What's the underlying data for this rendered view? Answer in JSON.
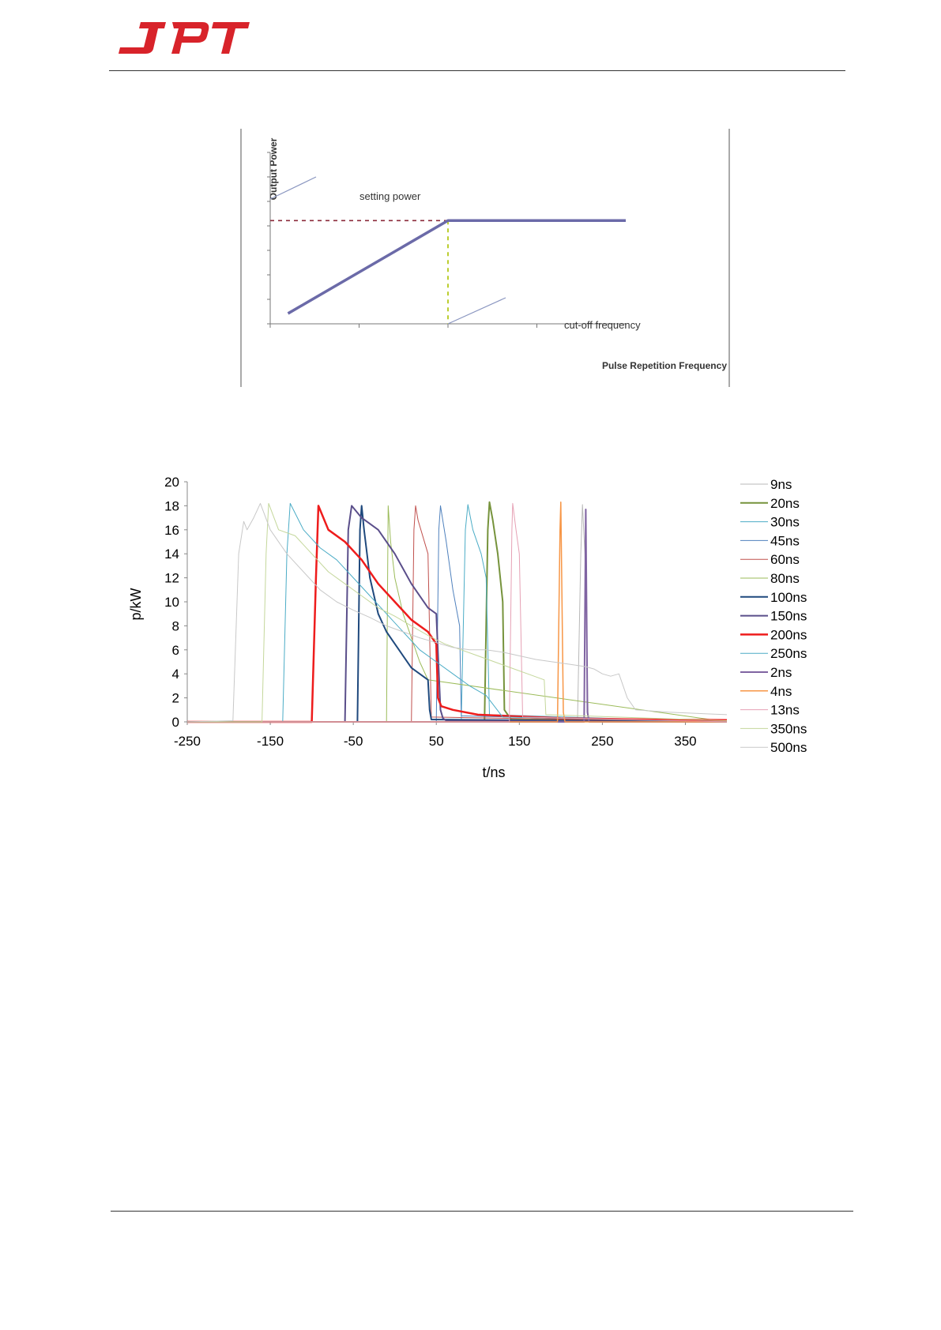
{
  "header": {
    "logo_text": "JPT",
    "brand_color": "#d8232a"
  },
  "chart_data": [
    {
      "type": "line",
      "ylabel": "Output Power",
      "xlabel": "Pulse Repetition Frequency",
      "annotations": [
        "setting power",
        "cut-off frequency"
      ],
      "series": [
        {
          "x": [
            0.1,
            1,
            2
          ],
          "values": [
            0.05,
            0.5,
            0.5
          ],
          "color": "#6b6aa8"
        }
      ],
      "setting_power_level": 0.5,
      "cutoff_frequency": 1,
      "xlim": [
        0,
        2
      ],
      "ylim": [
        0,
        0.83
      ],
      "guide_colors": {
        "setting_power": "#8b2a3a",
        "cut_off": "#b5c91a"
      }
    },
    {
      "type": "line",
      "xlabel": "t/ns",
      "ylabel": "p/kW",
      "xlim": [
        -250,
        400
      ],
      "ylim": [
        0,
        20
      ],
      "xticks": [
        -250,
        -150,
        -50,
        50,
        150,
        250,
        350
      ],
      "yticks": [
        0,
        2,
        4,
        6,
        8,
        10,
        12,
        14,
        16,
        18,
        20
      ],
      "legend_position": "right",
      "series": [
        {
          "name": "9ns",
          "color": "#b8b8b8",
          "width": 1,
          "x": [
            -250,
            220,
            224,
            226,
            229,
            233,
            400
          ],
          "values": [
            0,
            0,
            14,
            18.1,
            14,
            0.3,
            0
          ]
        },
        {
          "name": "20ns",
          "color": "#76933c",
          "width": 2,
          "x": [
            -250,
            108,
            112,
            114,
            118,
            124,
            130,
            132,
            140,
            400
          ],
          "values": [
            0,
            0,
            16,
            18.3,
            16.8,
            14,
            10,
            1,
            0.2,
            0
          ]
        },
        {
          "name": "30ns",
          "color": "#4bacc6",
          "width": 1,
          "x": [
            -250,
            80,
            85,
            88,
            94,
            104,
            110,
            114,
            400
          ],
          "values": [
            0,
            0,
            16,
            18.1,
            16,
            14,
            12,
            0.6,
            0
          ]
        },
        {
          "name": "45ns",
          "color": "#4f81bd",
          "width": 1,
          "x": [
            -250,
            50,
            53,
            55,
            62,
            70,
            78,
            80,
            400
          ],
          "values": [
            0,
            0,
            16,
            18,
            15,
            11,
            8,
            0.5,
            0
          ]
        },
        {
          "name": "60ns",
          "color": "#c0504d",
          "width": 1,
          "x": [
            -250,
            20,
            23,
            25,
            28,
            40,
            44,
            400
          ],
          "values": [
            0,
            0,
            16,
            18,
            16.8,
            14,
            0.4,
            0
          ]
        },
        {
          "name": "80ns",
          "color": "#9bbb59",
          "width": 1,
          "x": [
            -250,
            -10,
            -8,
            -5,
            0,
            10,
            20,
            30,
            40,
            400
          ],
          "values": [
            0,
            0,
            18,
            15,
            12,
            9,
            7,
            5,
            3.5,
            0
          ]
        },
        {
          "name": "100ns",
          "color": "#1f497d",
          "width": 2,
          "x": [
            -250,
            -45,
            -42,
            -40,
            -37,
            -30,
            -20,
            -10,
            0,
            10,
            20,
            30,
            40,
            42,
            44,
            400
          ],
          "values": [
            0,
            0,
            16,
            18,
            16,
            12,
            9,
            7.5,
            6.5,
            5.5,
            4.5,
            4,
            3.5,
            1,
            0.2,
            0
          ]
        },
        {
          "name": "150ns",
          "color": "#5a4e8a",
          "width": 2,
          "x": [
            -250,
            -60,
            -56,
            -52,
            -40,
            -20,
            0,
            20,
            40,
            50,
            55,
            58,
            62,
            400
          ],
          "values": [
            0,
            0,
            16,
            18,
            17,
            16,
            14,
            11.5,
            9.5,
            9,
            1,
            0.3,
            0.1,
            0
          ]
        },
        {
          "name": "200ns",
          "color": "#ee1c1c",
          "width": 2.5,
          "x": [
            -250,
            -100,
            -95,
            -92,
            -80,
            -60,
            -40,
            -20,
            0,
            20,
            40,
            50,
            52,
            56,
            70,
            100,
            200,
            300,
            400
          ],
          "values": [
            0,
            0,
            12,
            18,
            16,
            15,
            13.5,
            11.5,
            10,
            8.5,
            7.5,
            6.5,
            2,
            1.3,
            1,
            0.6,
            0.3,
            0.2,
            0.15
          ]
        },
        {
          "name": "250ns",
          "color": "#4bacc6",
          "width": 1,
          "x": [
            -250,
            -135,
            -130,
            -126,
            -110,
            -90,
            -70,
            -50,
            -30,
            -10,
            10,
            30,
            50,
            70,
            90,
            110,
            130,
            400
          ],
          "values": [
            0,
            0,
            14,
            18.2,
            16,
            14.5,
            13.5,
            12,
            10.5,
            9,
            7.5,
            6,
            5,
            4,
            3,
            2.2,
            0.4,
            0
          ]
        },
        {
          "name": "2ns",
          "color": "#8064a2",
          "width": 2,
          "x": [
            -250,
            228,
            230,
            232,
            234,
            400
          ],
          "values": [
            0,
            0,
            17.7,
            0.8,
            0,
            0
          ]
        },
        {
          "name": "4ns",
          "color": "#f79646",
          "width": 1.5,
          "x": [
            -250,
            196,
            199,
            200,
            203,
            205,
            400
          ],
          "values": [
            0,
            0,
            16,
            18.3,
            0.8,
            0,
            0
          ]
        },
        {
          "name": "13ns",
          "color": "#e6a0b4",
          "width": 1,
          "x": [
            -250,
            138,
            141,
            142,
            146,
            150,
            154,
            400
          ],
          "values": [
            0,
            0,
            16,
            18.2,
            16,
            14,
            0.4,
            0
          ]
        },
        {
          "name": "350ns",
          "color": "#c4d79b",
          "width": 1,
          "x": [
            -250,
            -160,
            -155,
            -152,
            -140,
            -120,
            -100,
            -80,
            -60,
            -40,
            -20,
            0,
            20,
            40,
            60,
            80,
            100,
            120,
            140,
            160,
            180,
            182,
            400
          ],
          "values": [
            0,
            0,
            14,
            18.2,
            16,
            15.5,
            14,
            12.5,
            11.5,
            10.5,
            9.5,
            8.8,
            8,
            7.2,
            6.5,
            6,
            5.5,
            5,
            4.5,
            4,
            3.5,
            0.6,
            0.1
          ]
        },
        {
          "name": "500ns",
          "color": "#c8c8c8",
          "width": 1,
          "x": [
            -250,
            -195,
            -188,
            -182,
            -178,
            -170,
            -162,
            -150,
            -130,
            -110,
            -90,
            -70,
            -50,
            -30,
            -10,
            10,
            30,
            50,
            70,
            90,
            110,
            130,
            150,
            170,
            190,
            210,
            230,
            240,
            250,
            260,
            270,
            280,
            290,
            330,
            400
          ],
          "values": [
            0,
            0.1,
            14,
            16.7,
            16,
            17,
            18.2,
            16,
            14,
            12.5,
            11,
            10,
            9.3,
            8.7,
            8,
            7.5,
            7,
            6.6,
            6.2,
            6,
            6,
            5.8,
            5.5,
            5.2,
            5,
            4.8,
            4.6,
            4.4,
            4,
            3.8,
            4,
            2,
            1,
            0.8,
            0.6
          ]
        }
      ]
    }
  ]
}
